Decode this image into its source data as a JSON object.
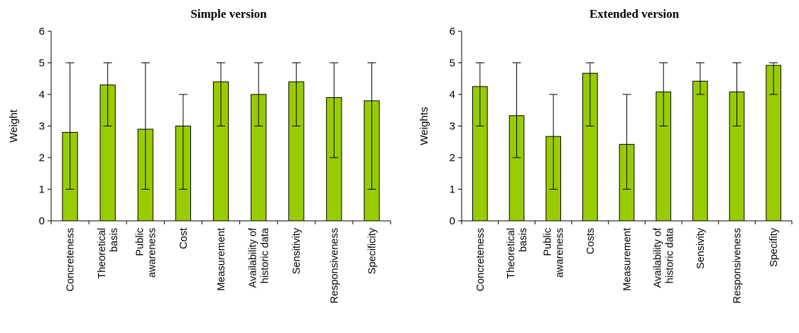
{
  "chart_data": [
    {
      "type": "bar",
      "title": "Simple version",
      "xlabel": "",
      "ylabel": "Weight",
      "ylim": [
        0,
        6
      ],
      "yticks": [
        0,
        1,
        2,
        3,
        4,
        5,
        6
      ],
      "grid": false,
      "bar_color": "#99cc00",
      "categories": [
        [
          "Concreteness"
        ],
        [
          "Theoretical",
          "basis"
        ],
        [
          "Public",
          "awareness"
        ],
        [
          "Cost"
        ],
        [
          "Measurement"
        ],
        [
          "Availability of",
          "historic data"
        ],
        [
          "Sensitivity"
        ],
        [
          "Responsiveness"
        ],
        [
          "Specificity"
        ]
      ],
      "values": [
        2.8,
        4.3,
        2.9,
        3.0,
        4.4,
        4.0,
        4.4,
        3.9,
        3.8
      ],
      "error_low": [
        1,
        3,
        1,
        1,
        3,
        3,
        3,
        2,
        1
      ],
      "error_high": [
        5,
        5,
        5,
        4,
        5,
        5,
        5,
        5,
        5
      ]
    },
    {
      "type": "bar",
      "title": "Extended version",
      "xlabel": "",
      "ylabel": "Weights",
      "ylim": [
        0,
        6
      ],
      "yticks": [
        0,
        1,
        2,
        3,
        4,
        5,
        6
      ],
      "grid": false,
      "bar_color": "#99cc00",
      "categories": [
        [
          "Concreteness"
        ],
        [
          "Theoretical",
          "basis"
        ],
        [
          "Public",
          "awareness"
        ],
        [
          "Costs"
        ],
        [
          "Measurement"
        ],
        [
          "Availability of",
          "historic data"
        ],
        [
          "Sensivity"
        ],
        [
          "Responsiveness"
        ],
        [
          "Specifity"
        ]
      ],
      "values": [
        4.25,
        3.33,
        2.67,
        4.67,
        2.42,
        4.08,
        4.42,
        4.08,
        4.92
      ],
      "error_low": [
        3,
        2,
        1,
        3,
        1,
        3,
        4,
        3,
        4
      ],
      "error_high": [
        5,
        5,
        4,
        5,
        4,
        5,
        5,
        5,
        5
      ]
    }
  ]
}
